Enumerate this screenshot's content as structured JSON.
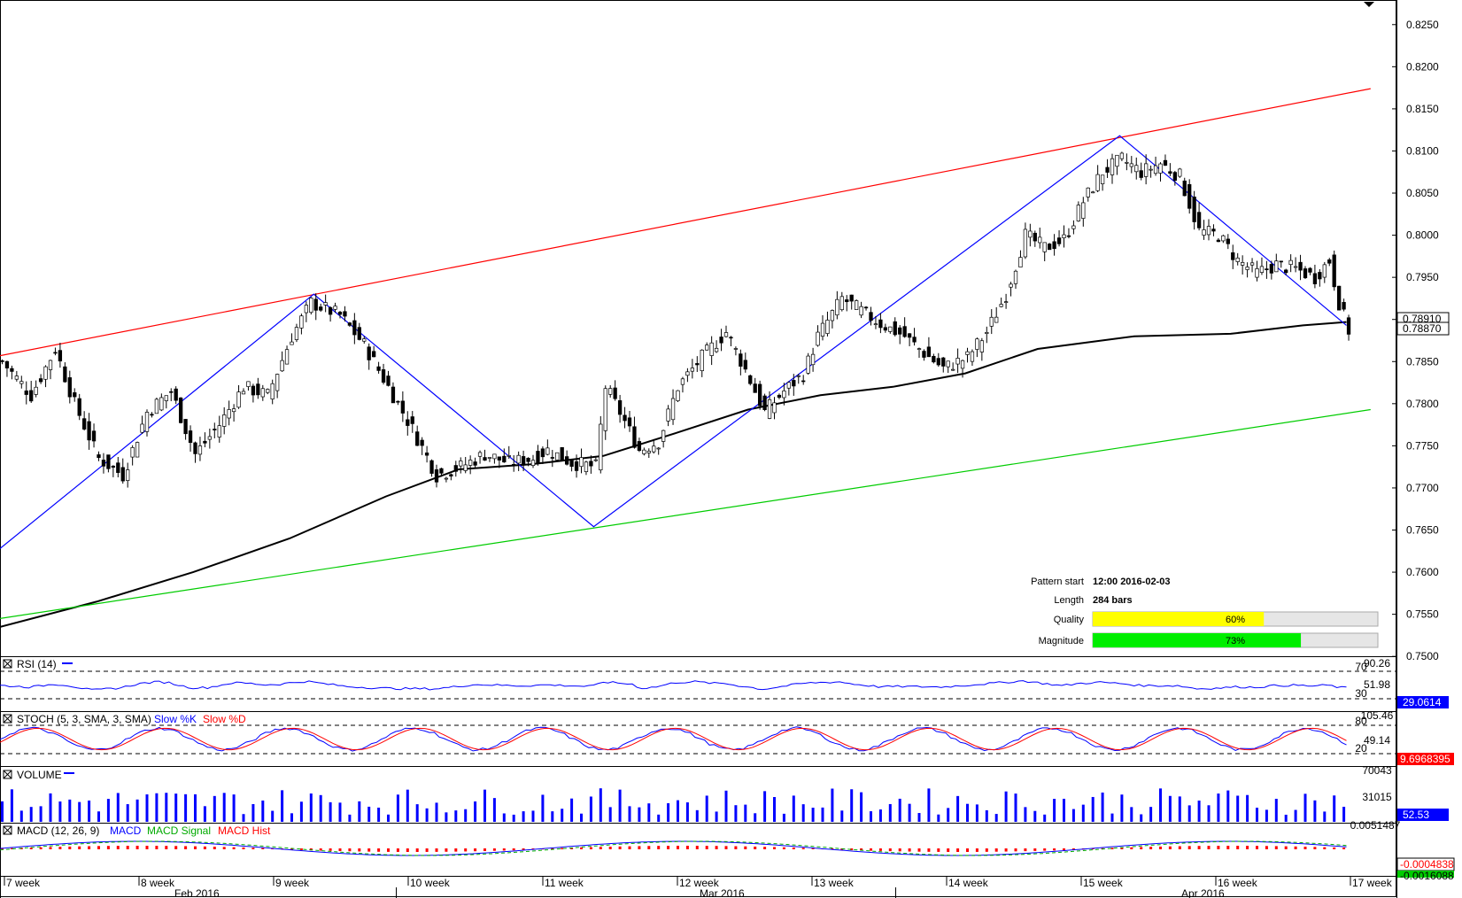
{
  "chart_data": {
    "type": "candlestick",
    "price_axis": {
      "min": 0.75,
      "max": 0.8275,
      "ticks": [
        "0.8250",
        "0.8200",
        "0.8150",
        "0.8100",
        "0.8050",
        "0.8000",
        "0.7950",
        "0.7900",
        "0.7850",
        "0.7800",
        "0.7750",
        "0.7700",
        "0.7650",
        "0.7600",
        "0.7550",
        "0.7500"
      ]
    },
    "price_badges": [
      "0.78910",
      "0.78870"
    ],
    "pattern_info": {
      "start_label": "Pattern start",
      "start_value": "12:00 2016-02-03",
      "length_label": "Length",
      "length_value": "284 bars",
      "quality_label": "Quality",
      "quality_value": "60%",
      "quality_pct": 60,
      "magnitude_label": "Magnitude",
      "magnitude_value": "73%",
      "magnitude_pct": 73
    },
    "pattern_lines": {
      "upper": {
        "color": "#ff0000",
        "points": [
          [
            0,
            0.7857
          ],
          [
            284,
            0.8174
          ]
        ]
      },
      "lower": {
        "color": "#00cc00",
        "points": [
          [
            0,
            0.7545
          ],
          [
            284,
            0.7793
          ]
        ]
      },
      "zigzag": {
        "color": "#0000ff",
        "points": [
          [
            0,
            0.7628
          ],
          [
            65,
            0.793
          ],
          [
            123,
            0.7654
          ],
          [
            232,
            0.8118
          ],
          [
            279,
            0.7893
          ]
        ]
      }
    },
    "ma_line": [
      [
        0,
        0.7535
      ],
      [
        20,
        0.7565
      ],
      [
        40,
        0.76
      ],
      [
        60,
        0.764
      ],
      [
        80,
        0.769
      ],
      [
        95,
        0.7722
      ],
      [
        110,
        0.7728
      ],
      [
        125,
        0.7738
      ],
      [
        140,
        0.7765
      ],
      [
        155,
        0.7793
      ],
      [
        170,
        0.781
      ],
      [
        185,
        0.782
      ],
      [
        200,
        0.7836
      ],
      [
        215,
        0.7865
      ],
      [
        235,
        0.788
      ],
      [
        255,
        0.7883
      ],
      [
        270,
        0.7893
      ],
      [
        279,
        0.7897
      ]
    ],
    "close_points": [
      [
        0,
        0.785
      ],
      [
        6,
        0.781
      ],
      [
        11,
        0.7865
      ],
      [
        15,
        0.78
      ],
      [
        20,
        0.7735
      ],
      [
        25,
        0.7715
      ],
      [
        30,
        0.779
      ],
      [
        35,
        0.7815
      ],
      [
        40,
        0.774
      ],
      [
        45,
        0.7775
      ],
      [
        50,
        0.782
      ],
      [
        55,
        0.781
      ],
      [
        60,
        0.788
      ],
      [
        64,
        0.792
      ],
      [
        70,
        0.7905
      ],
      [
        75,
        0.787
      ],
      [
        80,
        0.782
      ],
      [
        85,
        0.777
      ],
      [
        90,
        0.7715
      ],
      [
        95,
        0.7725
      ],
      [
        100,
        0.774
      ],
      [
        105,
        0.773
      ],
      [
        110,
        0.7735
      ],
      [
        113,
        0.7745
      ],
      [
        118,
        0.773
      ],
      [
        123,
        0.7725
      ],
      [
        125,
        0.782
      ],
      [
        128,
        0.779
      ],
      [
        132,
        0.7745
      ],
      [
        136,
        0.7755
      ],
      [
        140,
        0.782
      ],
      [
        145,
        0.7855
      ],
      [
        150,
        0.7885
      ],
      [
        154,
        0.784
      ],
      [
        158,
        0.779
      ],
      [
        162,
        0.7815
      ],
      [
        166,
        0.7835
      ],
      [
        169,
        0.788
      ],
      [
        174,
        0.7925
      ],
      [
        178,
        0.791
      ],
      [
        182,
        0.7895
      ],
      [
        187,
        0.788
      ],
      [
        191,
        0.786
      ],
      [
        195,
        0.7842
      ],
      [
        200,
        0.7855
      ],
      [
        204,
        0.7885
      ],
      [
        208,
        0.793
      ],
      [
        212,
        0.8
      ],
      [
        216,
        0.7985
      ],
      [
        220,
        0.7995
      ],
      [
        224,
        0.804
      ],
      [
        228,
        0.8075
      ],
      [
        232,
        0.809
      ],
      [
        236,
        0.8075
      ],
      [
        240,
        0.8085
      ],
      [
        244,
        0.807
      ],
      [
        248,
        0.8005
      ],
      [
        252,
        0.8
      ],
      [
        256,
        0.797
      ],
      [
        260,
        0.7955
      ],
      [
        264,
        0.7965
      ],
      [
        268,
        0.796
      ],
      [
        272,
        0.795
      ],
      [
        275,
        0.797
      ],
      [
        277,
        0.792
      ],
      [
        279,
        0.7887
      ]
    ],
    "rsi": {
      "label": "RSI (14)",
      "axis": [
        "90.26",
        "51.98",
        "30",
        "70"
      ],
      "value": "29.0614",
      "color": "#0000ff"
    },
    "stoch": {
      "label": "STOCH (5, 3, SMA, 3, SMA)",
      "k_label": "Slow %K",
      "d_label": "Slow %D",
      "axis": [
        "105.46",
        "49.14",
        "80",
        "20"
      ],
      "value": "9.6968395"
    },
    "volume": {
      "label": "VOLUME",
      "axis": [
        "70043",
        "31015"
      ],
      "value": "52.53"
    },
    "macd": {
      "label": "MACD (12, 26, 9)",
      "macd_label": "MACD",
      "signal_label": "MACD Signal",
      "hist_label": "MACD Hist",
      "axis": [
        "0.0051487"
      ],
      "value": "-0.0004838",
      "value2": "-0.0016088"
    },
    "x_week_labels": [
      "7 week",
      "8 week",
      "9 week",
      "10 week",
      "11 week",
      "12 week",
      "13 week",
      "14 week",
      "15 week",
      "16 week",
      "17 week"
    ],
    "x_month_labels": [
      "Feb 2016",
      "Mar 2016",
      "Apr 2016"
    ]
  },
  "colors": {
    "upper": "#ff0000",
    "lower": "#00cc00",
    "zigzag": "#0000ff",
    "quality": "#ffff00",
    "magnitude": "#00ee00",
    "badge_blue": "#0000ff",
    "badge_red": "#ff0000"
  }
}
